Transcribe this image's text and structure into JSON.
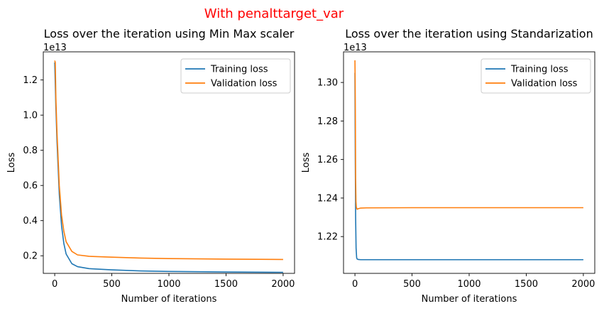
{
  "figure": {
    "suptitle": "With penalttarget_var",
    "suptitle_color": "#ff0000"
  },
  "chart_data": [
    {
      "type": "line",
      "title": "Loss over the iteration using Min Max scaler",
      "xlabel": "Number of iterations",
      "ylabel": "Loss",
      "offset_text": "1e13",
      "xlim": [
        -100,
        2100
      ],
      "ylim": [
        0.1,
        1.36
      ],
      "xticks": [
        0,
        500,
        1000,
        1500,
        2000
      ],
      "yticks": [
        0.2,
        0.4,
        0.6,
        0.8,
        1.0,
        1.2
      ],
      "ytick_labels": [
        "0.2",
        "0.4",
        "0.6",
        "0.8",
        "1.0",
        "1.2"
      ],
      "legend_position": "upper right",
      "series": [
        {
          "name": "Training loss",
          "color": "#1f77b4",
          "x": [
            0,
            10,
            20,
            40,
            60,
            80,
            100,
            150,
            200,
            300,
            500,
            750,
            1000,
            1500,
            2000
          ],
          "y": [
            1.3,
            1.05,
            0.85,
            0.55,
            0.37,
            0.27,
            0.21,
            0.155,
            0.138,
            0.127,
            0.12,
            0.114,
            0.111,
            0.108,
            0.106
          ]
        },
        {
          "name": "Validation loss",
          "color": "#ff7f0e",
          "x": [
            0,
            5,
            10,
            20,
            40,
            60,
            80,
            100,
            150,
            200,
            300,
            500,
            750,
            1000,
            1500,
            2000
          ],
          "y": [
            1.31,
            1.3,
            1.1,
            0.9,
            0.6,
            0.43,
            0.34,
            0.28,
            0.225,
            0.205,
            0.197,
            0.192,
            0.187,
            0.184,
            0.181,
            0.179
          ]
        }
      ]
    },
    {
      "type": "line",
      "title": "Loss over the iteration using Standarization",
      "xlabel": "Number of iterations",
      "ylabel": "Loss",
      "offset_text": "1e13",
      "xlim": [
        -100,
        2100
      ],
      "ylim": [
        1.2009,
        1.3159
      ],
      "xticks": [
        0,
        500,
        1000,
        1500,
        2000
      ],
      "yticks": [
        1.22,
        1.24,
        1.26,
        1.28,
        1.3
      ],
      "ytick_labels": [
        "1.22",
        "1.24",
        "1.26",
        "1.28",
        "1.30"
      ],
      "legend_position": "upper right",
      "series": [
        {
          "name": "Training loss",
          "color": "#1f77b4",
          "x": [
            0,
            3,
            6,
            10,
            15,
            20,
            30,
            50,
            100,
            500,
            1000,
            1500,
            2000
          ],
          "y": [
            1.305,
            1.26,
            1.23,
            1.214,
            1.209,
            1.2083,
            1.2081,
            1.208,
            1.208,
            1.208,
            1.208,
            1.208,
            1.208
          ]
        },
        {
          "name": "Validation loss",
          "color": "#ff7f0e",
          "x": [
            0,
            2,
            4,
            6,
            9,
            12,
            16,
            20,
            30,
            50,
            100,
            500,
            1000,
            1500,
            2000
          ],
          "y": [
            1.3115,
            1.3,
            1.28,
            1.25,
            1.238,
            1.2355,
            1.2345,
            1.2342,
            1.2345,
            1.2348,
            1.2349,
            1.235,
            1.235,
            1.235,
            1.235
          ]
        }
      ]
    }
  ]
}
